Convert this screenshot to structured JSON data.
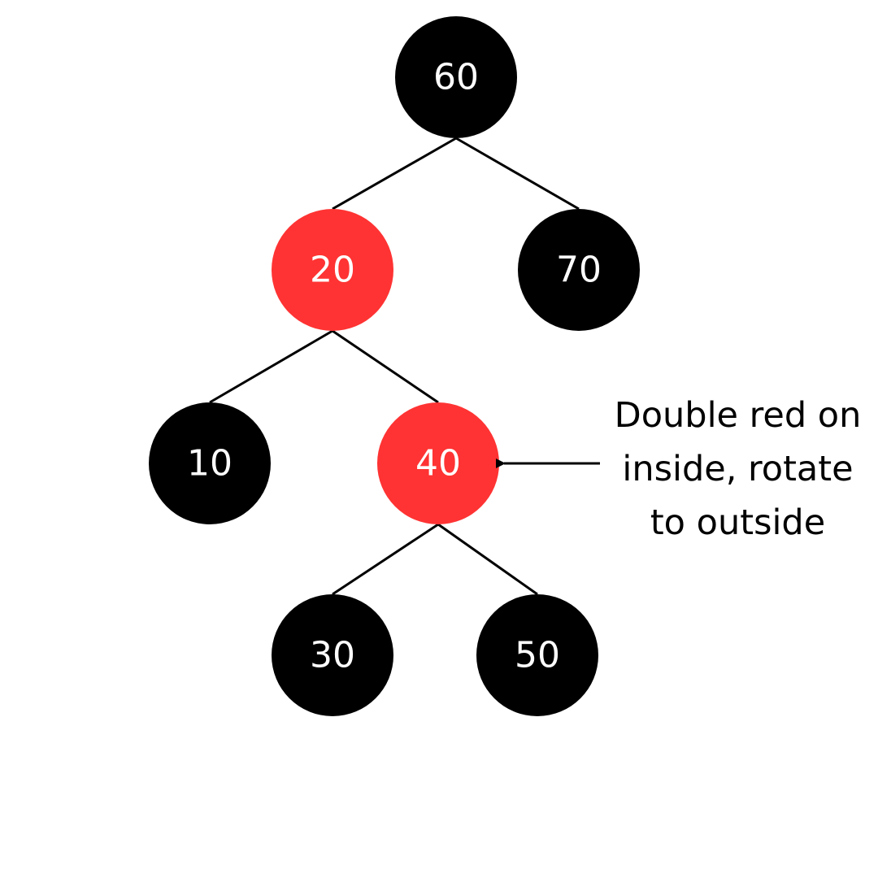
{
  "colors": {
    "black_node": "#000000",
    "red_node": "#ff3333",
    "label": "#ffffff",
    "edge": "#000000"
  },
  "nodes": [
    {
      "id": "n60",
      "label": "60",
      "color": "black"
    },
    {
      "id": "n20",
      "label": "20",
      "color": "red"
    },
    {
      "id": "n70",
      "label": "70",
      "color": "black"
    },
    {
      "id": "n10",
      "label": "10",
      "color": "black"
    },
    {
      "id": "n40",
      "label": "40",
      "color": "red"
    },
    {
      "id": "n30",
      "label": "30",
      "color": "black"
    },
    {
      "id": "n50",
      "label": "50",
      "color": "black"
    }
  ],
  "edges": [
    {
      "from": "n60",
      "to": "n20"
    },
    {
      "from": "n60",
      "to": "n70"
    },
    {
      "from": "n20",
      "to": "n10"
    },
    {
      "from": "n20",
      "to": "n40"
    },
    {
      "from": "n40",
      "to": "n30"
    },
    {
      "from": "n40",
      "to": "n50"
    }
  ],
  "annotation": {
    "lines": [
      "Double red on",
      "inside, rotate",
      "to outside"
    ],
    "points_to": "n40"
  }
}
